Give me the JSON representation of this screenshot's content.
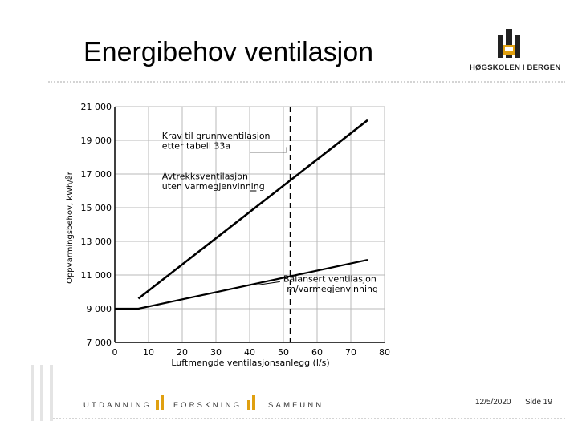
{
  "slide": {
    "title": "Energibehov ventilasjon",
    "logo_text": "HØGSKOLEN I BERGEN",
    "footer_words": [
      "UTDANNING",
      "FORSKNING",
      "SAMFUNN"
    ],
    "date": "12/5/2020",
    "page": "Side 19",
    "colors": {
      "accent": "#e0a010",
      "rule": "#d4d4d4"
    }
  },
  "chart_data": {
    "type": "line",
    "xlabel": "Luftmengde ventilasjonsanlegg (l/s)",
    "ylabel": "Oppvarmingsbehov, kWh/år",
    "xlim": [
      0,
      80
    ],
    "ylim": [
      7000,
      21000
    ],
    "x_ticks": [
      "0",
      "10",
      "20",
      "30",
      "40",
      "50",
      "60",
      "70",
      "80"
    ],
    "y_ticks": [
      "7 000",
      "9 000",
      "11 000",
      "13 000",
      "15 000",
      "17 000",
      "19 000",
      "21 000"
    ],
    "grid": true,
    "series": [
      {
        "name": "Avtrekksventilasjon uten varmegjenvinning",
        "x": [
          7,
          75
        ],
        "y": [
          9600,
          20200
        ]
      },
      {
        "name": "Balansert ventilasjon m/varmegjenvinning",
        "x": [
          0,
          7,
          75
        ],
        "y": [
          9000,
          9000,
          11900
        ]
      }
    ],
    "reference_line": {
      "label": "Krav til grunnventilasjon etter tabell 33a",
      "x": 52
    },
    "annotations": [
      {
        "text": "Krav til grunnventilasjon",
        "x": 14,
        "y": 19100
      },
      {
        "text": "etter tabell 33a",
        "x": 14,
        "y": 18500
      },
      {
        "text": "Avtrekksventilasjon",
        "x": 14,
        "y": 16700
      },
      {
        "text": "uten varmegjenvinning",
        "x": 14,
        "y": 16100
      },
      {
        "text": "Balansert ventilasjon",
        "x": 50,
        "y": 10600
      },
      {
        "text": "m/varmegjenvinning",
        "x": 51,
        "y": 10000
      }
    ]
  }
}
